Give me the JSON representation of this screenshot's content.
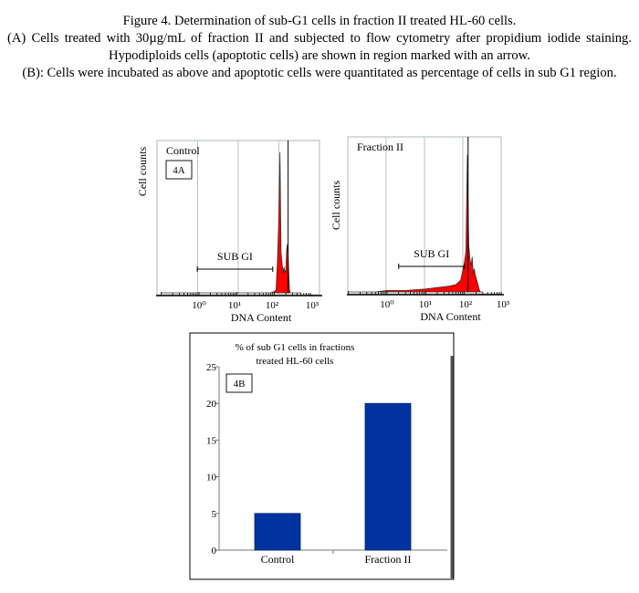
{
  "caption": {
    "line1": "Figure 4. Determination of sub-G1 cells in fraction II treated HL-60 cells.",
    "line2": "(A) Cells treated with 30µg/mL of fraction II and subjected to flow cytometry after propidium iodide staining. Hypodiploids cells (apoptotic cells) are shown in region marked with an arrow.",
    "line3": "(B): Cells were incubated as above and apoptotic cells were quantitated as percentage of cells in sub G1 region."
  },
  "colors": {
    "histogram_fill": "#ff0000",
    "bar_fill": "#0033a0",
    "grid_line": "#b9c6b9"
  },
  "chart_data": [
    {
      "type": "area",
      "panel_label": "4A",
      "title": "Control",
      "xlabel": "DNA Content",
      "ylabel": "Cell counts",
      "x_scale": "log",
      "xlim": [
        0.1,
        1000
      ],
      "x_ticks": [
        "10⁰",
        "10¹",
        "10²",
        "10³"
      ],
      "region_label": "SUB GI",
      "region_range": [
        0.9,
        90
      ],
      "x": [
        0.1,
        1,
        10,
        60,
        80,
        100,
        110,
        120,
        130,
        140,
        150,
        160,
        170,
        180,
        190,
        200,
        210,
        220,
        230,
        240,
        250,
        260,
        280,
        300,
        400,
        500
      ],
      "y": [
        0,
        0,
        0,
        0,
        0,
        1,
        2,
        22,
        52,
        98,
        28,
        20,
        14,
        18,
        14,
        16,
        30,
        34,
        26,
        12,
        3,
        0,
        0,
        0,
        0,
        0
      ],
      "gate_marker_x": 230
    },
    {
      "type": "area",
      "panel_label": "",
      "title": "Fraction II",
      "xlabel": "DNA Content",
      "ylabel": "Cell counts",
      "x_scale": "log",
      "xlim": [
        0.1,
        1000
      ],
      "x_ticks": [
        "10⁰",
        "10¹",
        "10²",
        "10³"
      ],
      "region_label": "SUB GI",
      "region_range": [
        2,
        100
      ],
      "x": [
        0.1,
        0.5,
        1,
        3,
        10,
        20,
        40,
        60,
        80,
        90,
        100,
        110,
        120,
        130,
        140,
        150,
        160,
        170,
        180,
        190,
        200,
        220,
        240,
        260,
        280,
        300
      ],
      "y": [
        0,
        0,
        1,
        1,
        2,
        3,
        4,
        5,
        8,
        14,
        20,
        28,
        94,
        32,
        22,
        18,
        24,
        12,
        16,
        12,
        10,
        6,
        2,
        0,
        0,
        0
      ],
      "gate_marker_x": 125
    },
    {
      "type": "bar",
      "panel_label": "4B",
      "title": "% of sub G1 cells in fractions treated HL-60 cells",
      "title_lines": [
        "% of sub G1 cells in fractions",
        "treated HL-60 cells"
      ],
      "categories": [
        "Control",
        "Fraction II"
      ],
      "values": [
        5,
        20
      ],
      "ylim": [
        0,
        25
      ],
      "y_ticks": [
        0,
        5,
        10,
        15,
        20,
        25
      ]
    }
  ]
}
